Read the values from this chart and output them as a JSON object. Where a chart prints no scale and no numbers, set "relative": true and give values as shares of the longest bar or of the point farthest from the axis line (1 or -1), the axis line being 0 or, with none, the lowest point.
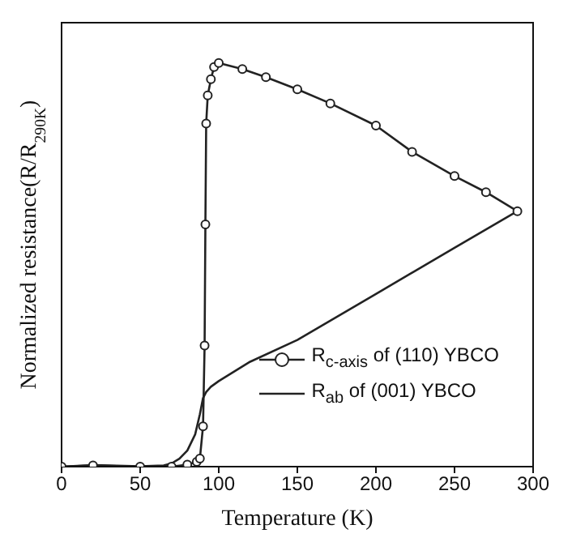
{
  "chart_data": {
    "type": "line",
    "xlabel": "Temperature (K)",
    "ylabel": "Normalized resistance(R/R$_{290K}$)",
    "relative": true,
    "xlim": [
      0,
      300
    ],
    "xticks": [
      0,
      50,
      100,
      150,
      200,
      250,
      300
    ],
    "grid": false,
    "legend": "bottom right",
    "line_style": "solid",
    "series": [
      {
        "name": "R$_{c-axis}$ of (110) YBCO",
        "color": "#222222",
        "marker": "circle",
        "x": [
          0,
          20,
          50,
          70,
          80,
          86,
          88,
          90,
          91,
          91.5,
          92,
          93,
          95,
          97,
          100,
          115,
          130,
          150,
          171,
          200,
          223,
          250,
          270,
          290
        ],
        "values": [
          0,
          0.003,
          0,
          0,
          0.005,
          0.012,
          0.02,
          0.1,
          0.3,
          0.6,
          0.85,
          0.92,
          0.96,
          0.99,
          1,
          0.985,
          0.965,
          0.935,
          0.9,
          0.845,
          0.78,
          0.72,
          0.68,
          0.633
        ]
      },
      {
        "name": "R$_{ab}$ of (001) YBCO",
        "color": "#222222",
        "marker": "none",
        "x": [
          0,
          20,
          50,
          65,
          70,
          75,
          80,
          85,
          88,
          90,
          92,
          95,
          100,
          120,
          150,
          200,
          250,
          290
        ],
        "values": [
          0,
          0.004,
          0.001,
          0.003,
          0.008,
          0.02,
          0.04,
          0.08,
          0.13,
          0.17,
          0.185,
          0.198,
          0.212,
          0.26,
          0.314,
          0.428,
          0.542,
          0.633
        ]
      }
    ]
  }
}
